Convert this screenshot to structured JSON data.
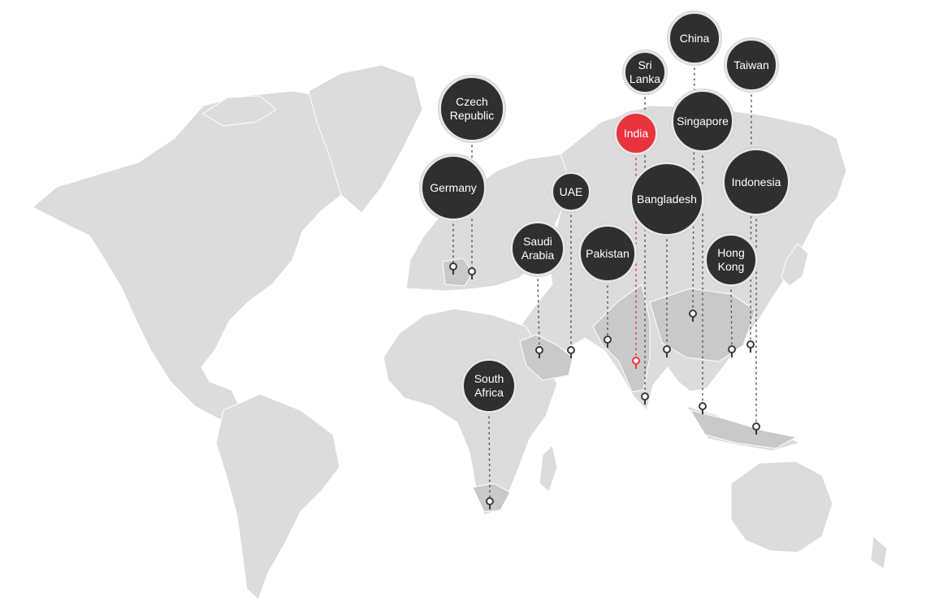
{
  "map": {
    "colors": {
      "land": "#dcdcdc",
      "highlight": "#c9c9c9",
      "bubble": "#2f2f2f",
      "active": "#e8343f",
      "pin": "#3a3a3a",
      "leader": "#555555"
    }
  },
  "locations": [
    {
      "id": "germany",
      "label": "Germany",
      "active": false
    },
    {
      "id": "czech-republic",
      "label": "Czech\nRepublic",
      "active": false
    },
    {
      "id": "saudi-arabia",
      "label": "Saudi\nArabia",
      "active": false
    },
    {
      "id": "uae",
      "label": "UAE",
      "active": false
    },
    {
      "id": "pakistan",
      "label": "Pakistan",
      "active": false
    },
    {
      "id": "india",
      "label": "India",
      "active": true
    },
    {
      "id": "sri-lanka",
      "label": "Sri\nLanka",
      "active": false
    },
    {
      "id": "bangladesh",
      "label": "Bangladesh",
      "active": false
    },
    {
      "id": "china",
      "label": "China",
      "active": false
    },
    {
      "id": "singapore",
      "label": "Singapore",
      "active": false
    },
    {
      "id": "hong-kong",
      "label": "Hong\nKong",
      "active": false
    },
    {
      "id": "taiwan",
      "label": "Taiwan",
      "active": false
    },
    {
      "id": "indonesia",
      "label": "Indonesia",
      "active": false
    },
    {
      "id": "south-africa",
      "label": "South\nAfrica",
      "active": false
    }
  ]
}
